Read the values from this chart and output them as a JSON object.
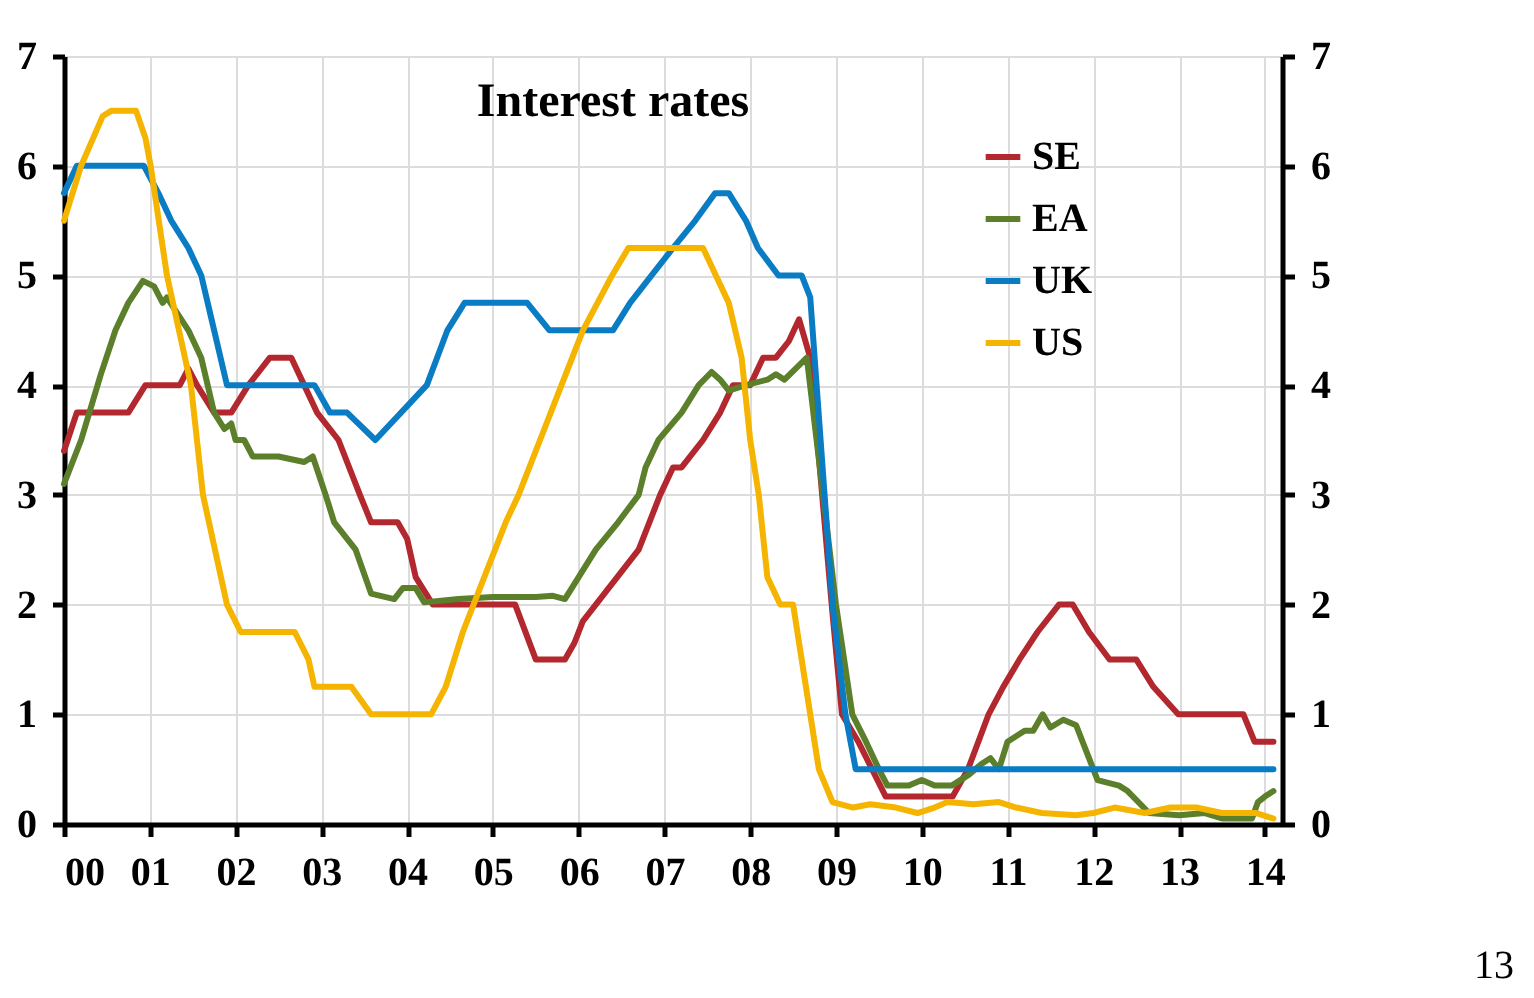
{
  "chart_data": {
    "type": "line",
    "title": "Interest rates",
    "xlim": [
      2000,
      2014.2
    ],
    "xticks": [
      {
        "value": 2000,
        "label": "00"
      },
      {
        "value": 2001,
        "label": "01"
      },
      {
        "value": 2002,
        "label": "02"
      },
      {
        "value": 2003,
        "label": "03"
      },
      {
        "value": 2004,
        "label": "04"
      },
      {
        "value": 2005,
        "label": "05"
      },
      {
        "value": 2006,
        "label": "06"
      },
      {
        "value": 2007,
        "label": "07"
      },
      {
        "value": 2008,
        "label": "08"
      },
      {
        "value": 2009,
        "label": "09"
      },
      {
        "value": 2010,
        "label": "10"
      },
      {
        "value": 2011,
        "label": "11"
      },
      {
        "value": 2012,
        "label": "12"
      },
      {
        "value": 2013,
        "label": "13"
      },
      {
        "value": 2014,
        "label": "14"
      }
    ],
    "ylim": [
      0,
      7
    ],
    "yticks": [
      0,
      1,
      2,
      3,
      4,
      5,
      6,
      7
    ],
    "y2lim": [
      0,
      7
    ],
    "y2ticks": [
      0,
      1,
      2,
      3,
      4,
      5,
      6,
      7
    ],
    "grid": true,
    "legend": "top right",
    "line_style": "solid",
    "marker": "none",
    "annotations": [
      "13"
    ],
    "series": [
      {
        "name": "SE",
        "color": "#b2282e",
        "x": [
          2000,
          2000.15,
          2000.75,
          2000.95,
          2001.35,
          2001.45,
          2001.55,
          2001.75,
          2001.95,
          2002.15,
          2002.4,
          2002.65,
          2002.8,
          2002.95,
          2003.2,
          2003.45,
          2003.58,
          2003.89,
          2004.0,
          2004.1,
          2004.3,
          2005.26,
          2005.5,
          2005.84,
          2005.95,
          2006.05,
          2006.2,
          2006.45,
          2006.7,
          2006.95,
          2007.1,
          2007.2,
          2007.45,
          2007.65,
          2007.8,
          2008.0,
          2008.15,
          2008.3,
          2008.45,
          2008.57,
          2008.7,
          2008.95,
          2009.07,
          2009.26,
          2009.58,
          2010.36,
          2010.54,
          2010.78,
          2010.95,
          2011.14,
          2011.35,
          2011.6,
          2011.76,
          2011.95,
          2012.19,
          2012.5,
          2012.7,
          2012.99,
          2013.75,
          2013.88,
          2014.1
        ],
        "values": [
          3.4,
          3.75,
          3.75,
          4.0,
          4.0,
          4.15,
          4.0,
          3.75,
          3.75,
          4.0,
          4.25,
          4.25,
          4.0,
          3.75,
          3.5,
          3.0,
          2.75,
          2.75,
          2.6,
          2.25,
          2.0,
          2.0,
          1.5,
          1.5,
          1.65,
          1.85,
          2.0,
          2.25,
          2.5,
          3.0,
          3.25,
          3.25,
          3.5,
          3.75,
          4.0,
          4.0,
          4.25,
          4.25,
          4.4,
          4.6,
          4.25,
          2.0,
          1.0,
          0.75,
          0.25,
          0.25,
          0.5,
          1.0,
          1.25,
          1.5,
          1.75,
          2.0,
          2.0,
          1.75,
          1.5,
          1.5,
          1.25,
          1.0,
          1.0,
          0.75,
          0.75
        ]
      },
      {
        "name": "EA",
        "color": "#5b7f2b",
        "x": [
          2000,
          2000.2,
          2000.43,
          2000.6,
          2000.75,
          2000.92,
          2001.05,
          2001.15,
          2001.2,
          2001.45,
          2001.6,
          2001.75,
          2001.87,
          2001.95,
          2002.0,
          2002.1,
          2002.2,
          2002.5,
          2002.8,
          2002.9,
          2003.05,
          2003.15,
          2003.4,
          2003.58,
          2003.85,
          2003.95,
          2004.1,
          2004.2,
          2004.6,
          2005.0,
          2005.5,
          2005.7,
          2005.84,
          2006.0,
          2006.2,
          2006.46,
          2006.7,
          2006.78,
          2006.93,
          2007.2,
          2007.4,
          2007.55,
          2007.65,
          2007.75,
          2007.95,
          2008.2,
          2008.3,
          2008.4,
          2008.66,
          2008.85,
          2009.0,
          2009.19,
          2009.35,
          2009.5,
          2009.6,
          2009.85,
          2010.0,
          2010.15,
          2010.35,
          2010.55,
          2010.7,
          2010.8,
          2010.9,
          2011.0,
          2011.2,
          2011.3,
          2011.41,
          2011.5,
          2011.65,
          2011.8,
          2011.95,
          2012.05,
          2012.3,
          2012.4,
          2012.65,
          2013.0,
          2013.3,
          2013.5,
          2013.85,
          2013.92,
          2014.0,
          2014.1
        ],
        "values": [
          3.1,
          3.5,
          4.1,
          4.5,
          4.75,
          4.95,
          4.9,
          4.75,
          4.8,
          4.5,
          4.25,
          3.75,
          3.6,
          3.65,
          3.5,
          3.5,
          3.35,
          3.35,
          3.3,
          3.35,
          3.0,
          2.75,
          2.5,
          2.1,
          2.05,
          2.15,
          2.15,
          2.02,
          2.05,
          2.07,
          2.07,
          2.08,
          2.05,
          2.25,
          2.5,
          2.75,
          3.0,
          3.25,
          3.5,
          3.75,
          4.0,
          4.12,
          4.05,
          3.95,
          4.0,
          4.05,
          4.1,
          4.05,
          4.25,
          3.0,
          2.0,
          1.0,
          0.75,
          0.5,
          0.35,
          0.35,
          0.4,
          0.35,
          0.35,
          0.45,
          0.55,
          0.6,
          0.5,
          0.75,
          0.85,
          0.85,
          1.0,
          0.88,
          0.95,
          0.9,
          0.6,
          0.4,
          0.35,
          0.3,
          0.1,
          0.08,
          0.1,
          0.05,
          0.05,
          0.2,
          0.25,
          0.3
        ]
      },
      {
        "name": "UK",
        "color": "#0a7cc4",
        "x": [
          2000,
          2000.15,
          2000.93,
          2001.1,
          2001.25,
          2001.45,
          2001.6,
          2001.75,
          2001.9,
          2002.92,
          2003.1,
          2003.3,
          2003.63,
          2004.23,
          2004.47,
          2004.67,
          2005.4,
          2005.66,
          2006.4,
          2006.6,
          2006.85,
          2007.1,
          2007.36,
          2007.59,
          2007.75,
          2007.95,
          2008.09,
          2008.33,
          2008.6,
          2008.7,
          2008.96,
          2009.11,
          2009.23,
          2014.1
        ],
        "values": [
          5.75,
          6.0,
          6.0,
          5.75,
          5.5,
          5.25,
          5.0,
          4.5,
          4.0,
          4.0,
          3.75,
          3.75,
          3.5,
          4.0,
          4.5,
          4.75,
          4.75,
          4.5,
          4.5,
          4.75,
          5.0,
          5.25,
          5.5,
          5.75,
          5.75,
          5.5,
          5.25,
          5.0,
          5.0,
          4.8,
          2.0,
          1.0,
          0.5,
          0.5
        ]
      },
      {
        "name": "US",
        "color": "#f5b400",
        "x": [
          2000,
          2000.2,
          2000.45,
          2000.55,
          2000.84,
          2000.95,
          2001.01,
          2001.2,
          2001.48,
          2001.55,
          2001.62,
          2001.9,
          2002.06,
          2002.69,
          2002.85,
          2002.92,
          2003.35,
          2003.58,
          2004.28,
          2004.45,
          2004.65,
          2004.9,
          2005.15,
          2005.3,
          2005.55,
          2005.8,
          2006.05,
          2006.39,
          2006.58,
          2007.45,
          2007.6,
          2007.75,
          2007.9,
          2008.0,
          2008.1,
          2008.2,
          2008.35,
          2008.5,
          2008.6,
          2008.8,
          2008.96,
          2009.2,
          2009.4,
          2009.7,
          2009.95,
          2010.15,
          2010.3,
          2010.6,
          2010.9,
          2011.1,
          2011.4,
          2011.8,
          2012.0,
          2012.25,
          2012.6,
          2012.9,
          2013.2,
          2013.5,
          2013.9,
          2014.1
        ],
        "values": [
          5.5,
          6.0,
          6.45,
          6.5,
          6.5,
          6.25,
          6.0,
          5.0,
          4.0,
          3.5,
          3.0,
          2.0,
          1.75,
          1.75,
          1.5,
          1.25,
          1.25,
          1.0,
          1.0,
          1.25,
          1.75,
          2.25,
          2.75,
          3.0,
          3.5,
          4.0,
          4.5,
          5.0,
          5.25,
          5.25,
          5.0,
          4.75,
          4.25,
          3.5,
          3.0,
          2.25,
          2.0,
          2.0,
          1.5,
          0.5,
          0.2,
          0.15,
          0.18,
          0.15,
          0.1,
          0.15,
          0.2,
          0.18,
          0.2,
          0.15,
          0.1,
          0.08,
          0.1,
          0.15,
          0.1,
          0.15,
          0.15,
          0.1,
          0.1,
          0.05
        ]
      }
    ]
  }
}
